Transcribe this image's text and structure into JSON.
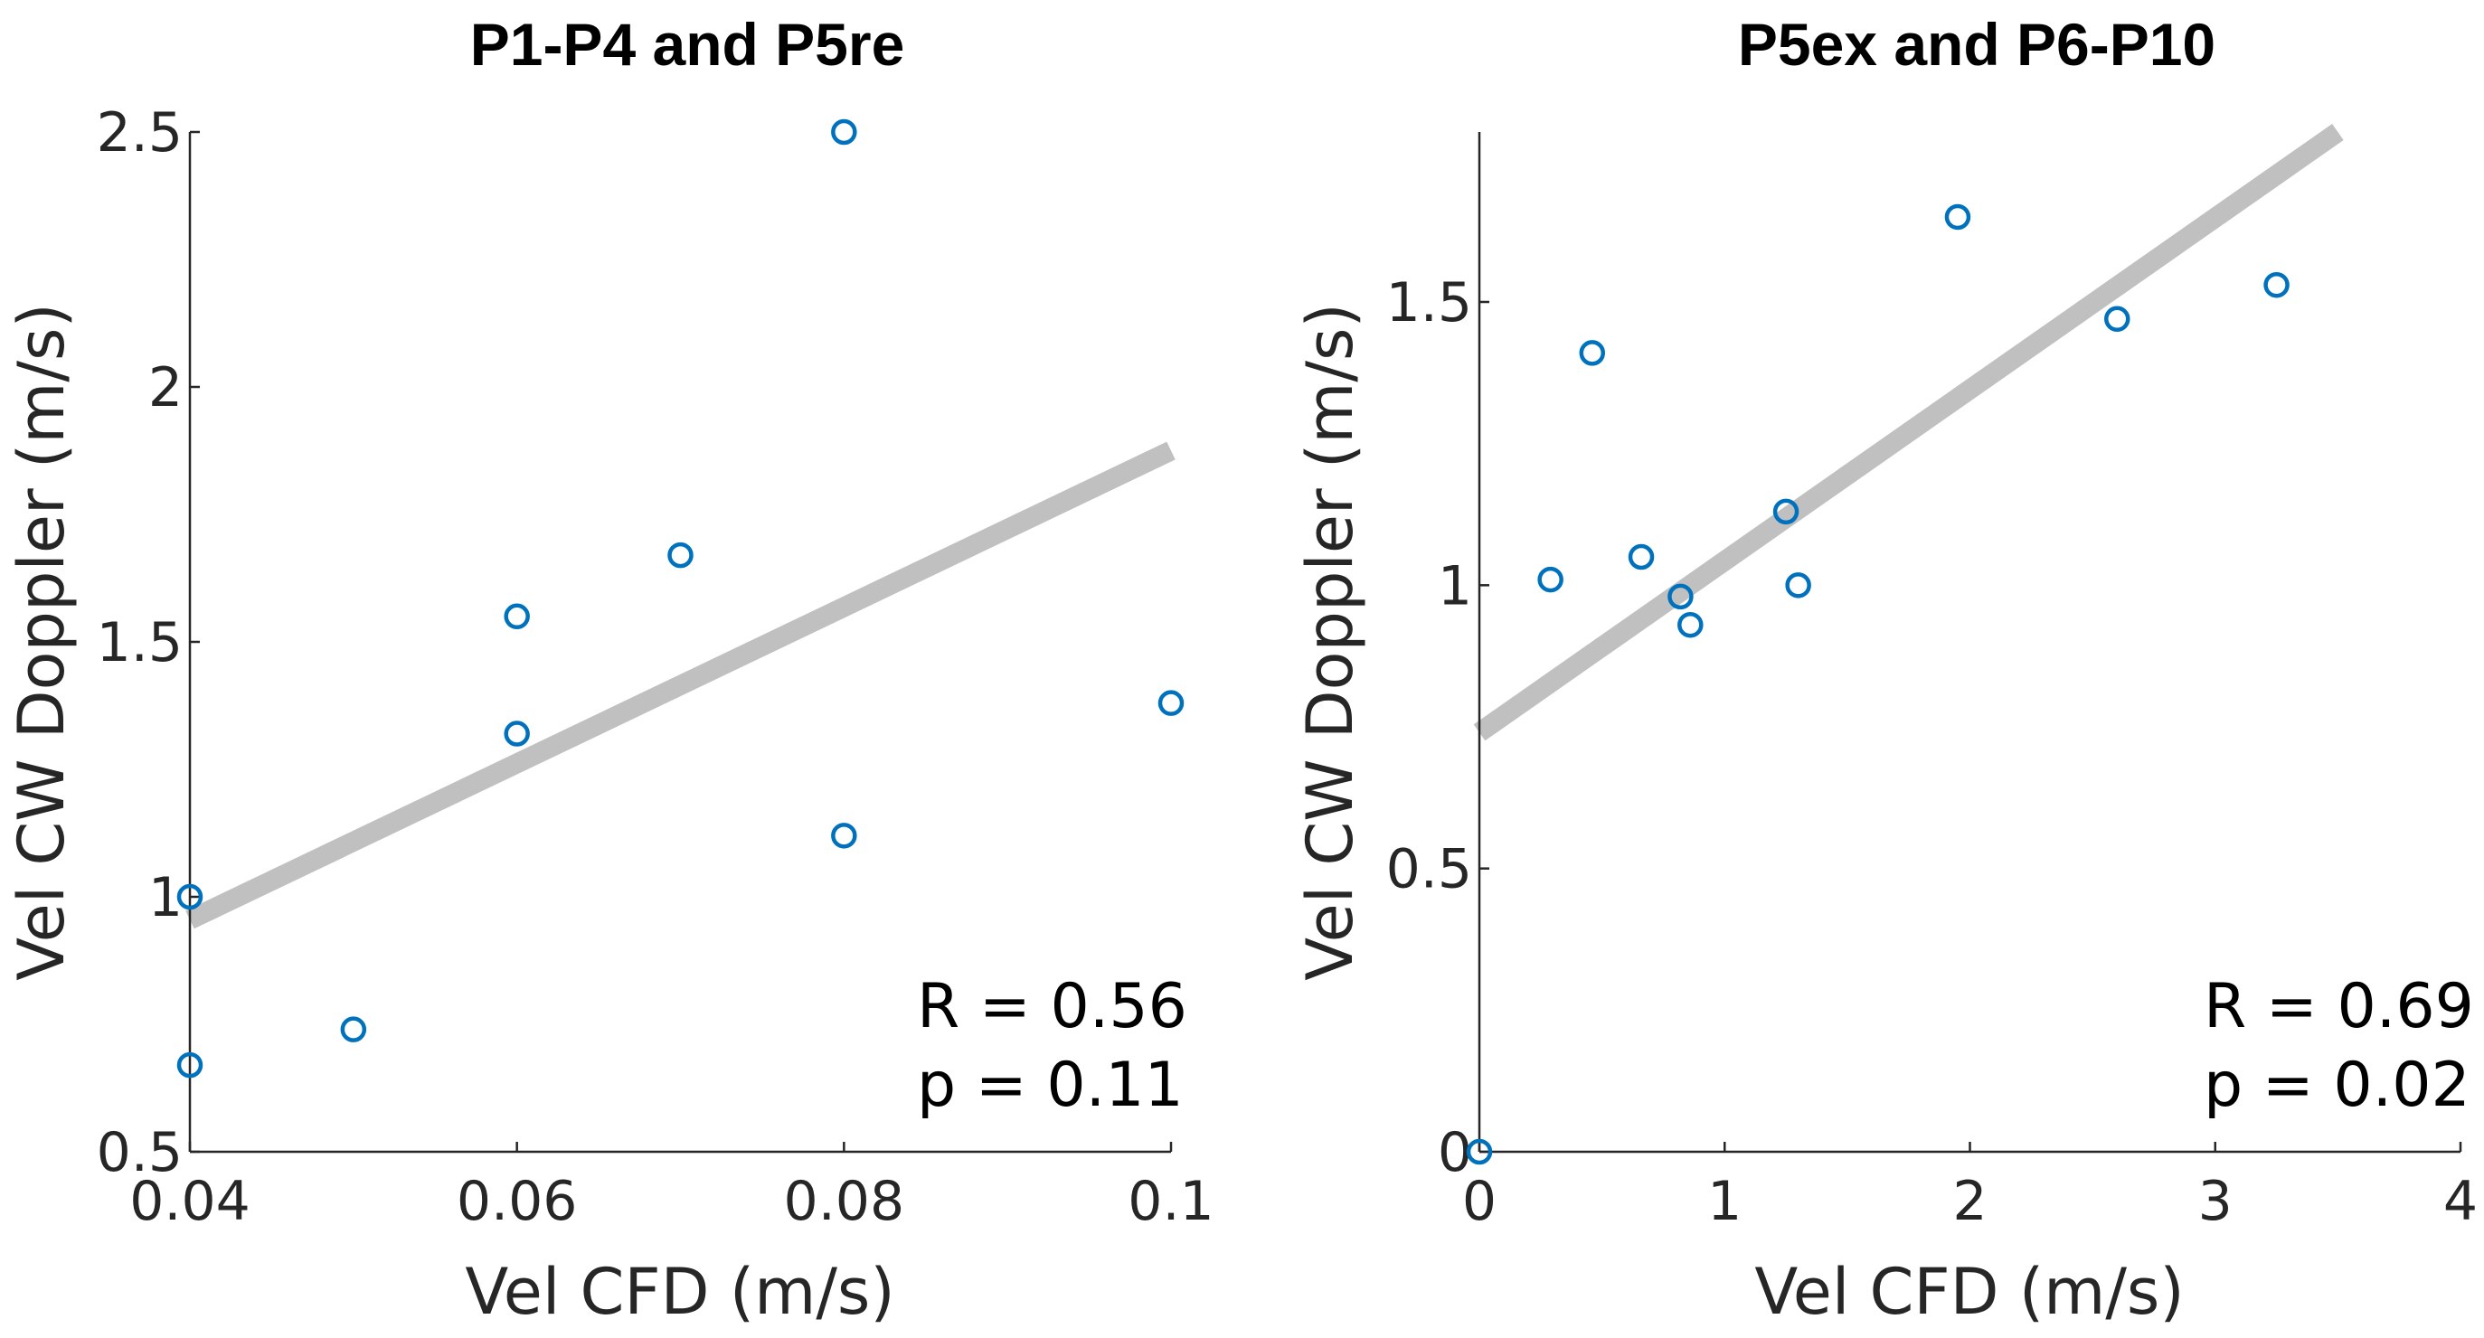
{
  "chart_data": [
    {
      "type": "scatter",
      "title": "P1-P4 and P5re",
      "xlabel": "Vel CFD (m/s)",
      "ylabel": "Vel CW Doppler (m/s)",
      "xlim": [
        0.04,
        0.1
      ],
      "ylim": [
        0.5,
        2.5
      ],
      "xticks": [
        0.04,
        0.06,
        0.08,
        0.1
      ],
      "xtick_labels": [
        "0.04",
        "0.06",
        "0.08",
        "0.1"
      ],
      "yticks": [
        0.5,
        1,
        1.5,
        2,
        2.5
      ],
      "ytick_labels": [
        "0.5",
        "1",
        "1.5",
        "2",
        "2.5"
      ],
      "grid": false,
      "points": [
        {
          "x": 0.04,
          "y": 1.0
        },
        {
          "x": 0.04,
          "y": 0.67
        },
        {
          "x": 0.05,
          "y": 0.74
        },
        {
          "x": 0.06,
          "y": 1.55
        },
        {
          "x": 0.06,
          "y": 1.32
        },
        {
          "x": 0.07,
          "y": 1.67
        },
        {
          "x": 0.08,
          "y": 2.5
        },
        {
          "x": 0.08,
          "y": 1.12
        },
        {
          "x": 0.1,
          "y": 1.38
        }
      ],
      "fit_line": {
        "x": [
          0.04,
          0.1
        ],
        "y": [
          0.955,
          1.875
        ]
      },
      "annotation": [
        "R = 0.56",
        "p  = 0.11"
      ],
      "marker_color": "#0072BD",
      "fit_color": "#C0C0C0"
    },
    {
      "type": "scatter",
      "title": "P5ex and P6-P10",
      "xlabel": "Vel CFD (m/s)",
      "ylabel": "Vel CW Doppler (m/s)",
      "xlim": [
        0,
        4
      ],
      "ylim": [
        0,
        1.8
      ],
      "xticks": [
        0,
        1,
        2,
        3,
        4
      ],
      "xtick_labels": [
        "0",
        "1",
        "2",
        "3",
        "4"
      ],
      "yticks": [
        0,
        0.5,
        1,
        1.5
      ],
      "ytick_labels": [
        "0",
        "0.5",
        "1",
        "1.5"
      ],
      "grid": false,
      "points": [
        {
          "x": 0.0,
          "y": 0.0
        },
        {
          "x": 0.29,
          "y": 1.01
        },
        {
          "x": 0.46,
          "y": 1.41
        },
        {
          "x": 0.66,
          "y": 1.05
        },
        {
          "x": 0.82,
          "y": 0.98
        },
        {
          "x": 0.86,
          "y": 0.93
        },
        {
          "x": 1.25,
          "y": 1.13
        },
        {
          "x": 1.3,
          "y": 1.0
        },
        {
          "x": 1.95,
          "y": 1.65
        },
        {
          "x": 2.6,
          "y": 1.47
        },
        {
          "x": 3.25,
          "y": 1.53
        }
      ],
      "fit_line": {
        "x": [
          0,
          3.5
        ],
        "y": [
          0.74,
          1.8
        ]
      },
      "annotation": [
        "R = 0.69",
        "p  = 0.02"
      ],
      "marker_color": "#0072BD",
      "fit_color": "#C0C0C0"
    }
  ]
}
